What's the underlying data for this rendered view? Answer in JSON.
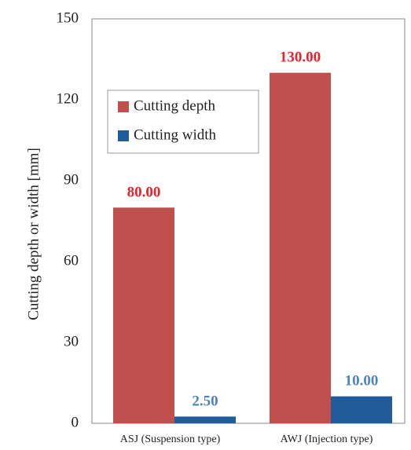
{
  "chart_data": {
    "type": "bar",
    "categories": [
      "ASJ (Suspension type)",
      "AWJ (Injection type)"
    ],
    "series": [
      {
        "name": "Cutting depth",
        "values": [
          80.0,
          130.0
        ],
        "labels": [
          "80.00",
          "130.00"
        ],
        "color": "#C0504D",
        "label_color": "#E8232B"
      },
      {
        "name": "Cutting width",
        "values": [
          2.5,
          10.0
        ],
        "labels": [
          "2.50",
          "10.00"
        ],
        "color": "#1F5C99",
        "label_color": "#4F81BD"
      }
    ],
    "title": "",
    "xlabel": "",
    "ylabel": "Cutting depth or width [mm]",
    "ylim": [
      0,
      150
    ],
    "yticks": [
      "0",
      "30",
      "60",
      "90",
      "120",
      "150"
    ],
    "grid": false,
    "legend_position": "upper-left"
  }
}
